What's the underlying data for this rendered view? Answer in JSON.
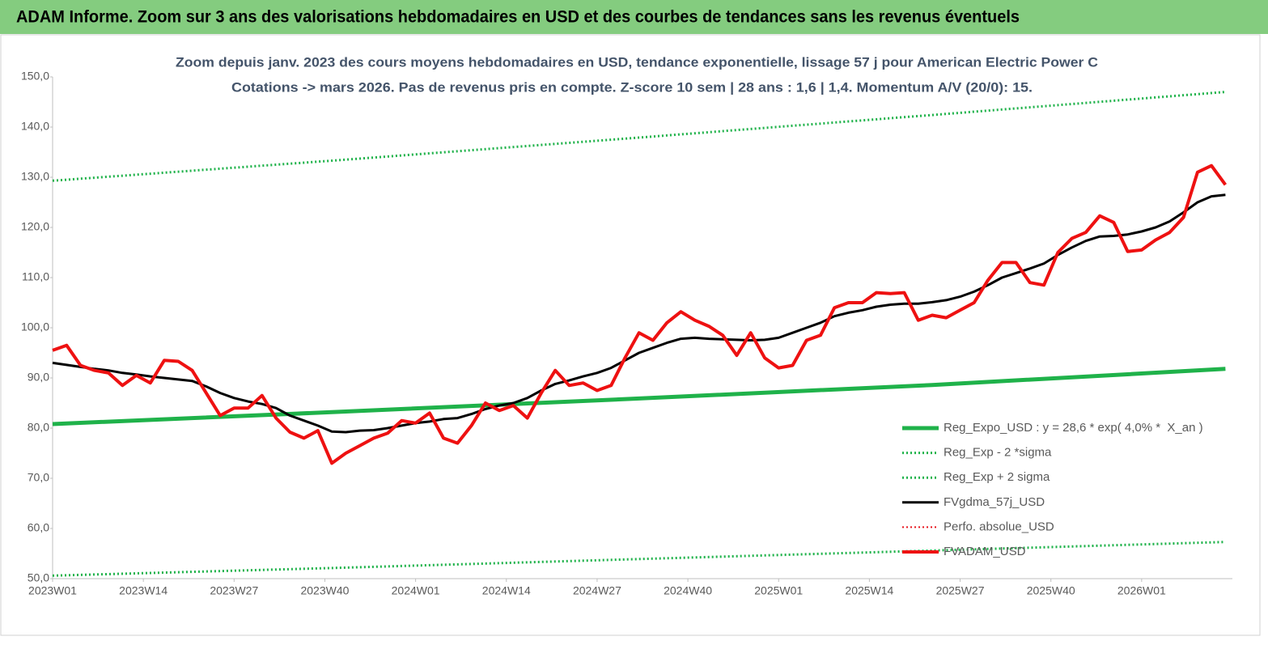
{
  "header": {
    "title": "ADAM Informe. Zoom sur 3 ans des valorisations hebdomadaires en USD et des courbes de tendances sans les revenus éventuels"
  },
  "chart_data": {
    "type": "line",
    "title": "Zoom depuis janv. 2023 des cours moyens hebdomadaires en USD, tendance exponentielle, lissage 57 j pour American Electric Power C",
    "subtitle": "Cotations -> mars 2026. Pas de revenus pris en compte. Z-score 10 sem | 28 ans : 1,6 | 1,4. Momentum A/V (20/0): 15.",
    "xlim": [
      0,
      169
    ],
    "xticks": [
      {
        "value": 0,
        "label": "2023W01"
      },
      {
        "value": 13,
        "label": "2023W14"
      },
      {
        "value": 26,
        "label": "2023W27"
      },
      {
        "value": 39,
        "label": "2023W40"
      },
      {
        "value": 52,
        "label": "2024W01"
      },
      {
        "value": 65,
        "label": "2024W14"
      },
      {
        "value": 78,
        "label": "2024W27"
      },
      {
        "value": 91,
        "label": "2024W40"
      },
      {
        "value": 104,
        "label": "2025W01"
      },
      {
        "value": 117,
        "label": "2025W14"
      },
      {
        "value": 130,
        "label": "2025W27"
      },
      {
        "value": 143,
        "label": "2025W40"
      },
      {
        "value": 156,
        "label": "2026W01"
      }
    ],
    "ylim": [
      50,
      150
    ],
    "yticks": [
      {
        "value": 50,
        "label": "50,0"
      },
      {
        "value": 60,
        "label": "60,0"
      },
      {
        "value": 70,
        "label": "70,0"
      },
      {
        "value": 80,
        "label": "80,0"
      },
      {
        "value": 90,
        "label": "90,0"
      },
      {
        "value": 100,
        "label": "100,0"
      },
      {
        "value": 110,
        "label": "110,0"
      },
      {
        "value": 120,
        "label": "120,0"
      },
      {
        "value": 130,
        "label": "130,0"
      },
      {
        "value": 140,
        "label": "140,0"
      },
      {
        "value": 150,
        "label": "150,0"
      }
    ],
    "grid": false,
    "legend": "bottom-right",
    "series": [
      {
        "name": "Reg_Expo_USD : y = 28,6 * exp( 4,0% *  X_an )",
        "color": "#1fb24a",
        "style": "solid",
        "width": 5,
        "x": [
          0,
          42,
          84,
          126,
          168
        ],
        "values": [
          80.8,
          83.3,
          85.9,
          88.6,
          91.8
        ]
      },
      {
        "name": "Reg_Exp - 2 *sigma",
        "color": "#1fb24a",
        "style": "dotted",
        "width": 3,
        "x": [
          0,
          42,
          84,
          126,
          168
        ],
        "values": [
          50.6,
          52.2,
          53.9,
          55.6,
          57.3
        ]
      },
      {
        "name": "Reg_Exp + 2 sigma",
        "color": "#1fb24a",
        "style": "dotted",
        "width": 3,
        "x": [
          0,
          42,
          84,
          126,
          168
        ],
        "values": [
          129.3,
          133.5,
          137.9,
          142.4,
          147.0
        ]
      },
      {
        "name": "FVgdma_57j_USD",
        "color": "#000000",
        "style": "solid",
        "width": 3,
        "x": [
          0,
          2,
          4,
          6,
          8,
          10,
          12,
          14,
          16,
          18,
          20,
          22,
          24,
          26,
          28,
          30,
          32,
          34,
          36,
          38,
          40,
          42,
          44,
          46,
          48,
          50,
          52,
          54,
          56,
          58,
          60,
          62,
          64,
          66,
          68,
          70,
          72,
          74,
          76,
          78,
          80,
          82,
          84,
          86,
          88,
          90,
          92,
          94,
          96,
          98,
          100,
          102,
          104,
          106,
          108,
          110,
          112,
          114,
          116,
          118,
          120,
          122,
          124,
          126,
          128,
          130,
          132,
          134,
          136,
          138,
          140,
          142,
          144,
          146,
          148,
          150,
          152,
          154,
          156,
          158,
          160,
          162,
          164,
          166,
          168
        ],
        "values": [
          93,
          92.6,
          92.2,
          91.8,
          91.5,
          91,
          90.7,
          90.3,
          90,
          89.7,
          89.4,
          88.3,
          87,
          86,
          85.3,
          84.8,
          84,
          82.5,
          81.5,
          80.5,
          79.3,
          79.2,
          79.5,
          79.6,
          80,
          80.5,
          81,
          81.3,
          81.8,
          82,
          82.8,
          83.8,
          84.5,
          85,
          86,
          87.5,
          88.8,
          89.5,
          90.3,
          91,
          92,
          93.5,
          95,
          96,
          97,
          97.8,
          98,
          97.8,
          97.7,
          97.6,
          97.5,
          97.6,
          98,
          99,
          100,
          101,
          102.3,
          103,
          103.5,
          104.2,
          104.6,
          104.8,
          104.8,
          105.1,
          105.5,
          106.2,
          107.2,
          108.5,
          110,
          110.9,
          111.8,
          112.8,
          114.5,
          116,
          117.3,
          118.2,
          118.3,
          118.6,
          119.2,
          120,
          121.2,
          123,
          125,
          126.2,
          126.5
        ]
      },
      {
        "name": "Perfo. absolue_USD",
        "color": "#e8141c",
        "style": "dotted",
        "width": 2,
        "x": [],
        "values": []
      },
      {
        "name": "FVADAM_USD",
        "color": "#ee1111",
        "style": "solid",
        "width": 4,
        "x": [
          0,
          2,
          4,
          6,
          8,
          10,
          12,
          14,
          16,
          18,
          20,
          22,
          24,
          26,
          28,
          30,
          32,
          34,
          36,
          38,
          40,
          42,
          44,
          46,
          48,
          50,
          52,
          54,
          56,
          58,
          60,
          62,
          64,
          66,
          68,
          70,
          72,
          74,
          76,
          78,
          80,
          82,
          84,
          86,
          88,
          90,
          92,
          94,
          96,
          98,
          100,
          102,
          104,
          106,
          108,
          110,
          112,
          114,
          116,
          118,
          120,
          122,
          124,
          126,
          128,
          130,
          132,
          134,
          136,
          138,
          140,
          142,
          144,
          146,
          148,
          150,
          152,
          154,
          156,
          158,
          160,
          162,
          164,
          166,
          168
        ],
        "values": [
          95.5,
          96.5,
          92.5,
          91.5,
          91,
          88.5,
          90.5,
          89,
          93.5,
          93.3,
          91.5,
          87,
          82.5,
          84,
          84,
          86.5,
          82,
          79.2,
          78,
          79.5,
          73,
          75,
          76.5,
          78,
          79,
          81.5,
          81,
          83,
          78,
          77,
          80.5,
          85,
          83.5,
          84.5,
          82,
          87,
          91.5,
          88.5,
          89,
          87.5,
          88.5,
          94,
          99,
          97.5,
          101,
          103.2,
          101.5,
          100.3,
          98.5,
          94.5,
          99,
          94,
          92,
          92.5,
          97.5,
          98.5,
          104,
          105,
          105,
          107,
          106.8,
          107,
          101.5,
          102.5,
          102,
          103.5,
          105,
          109.5,
          113,
          113,
          109,
          108.5,
          115,
          117.8,
          119,
          122.3,
          121,
          115.2,
          115.5,
          117.5,
          119,
          122,
          131,
          132.3,
          128.5
        ]
      }
    ]
  }
}
